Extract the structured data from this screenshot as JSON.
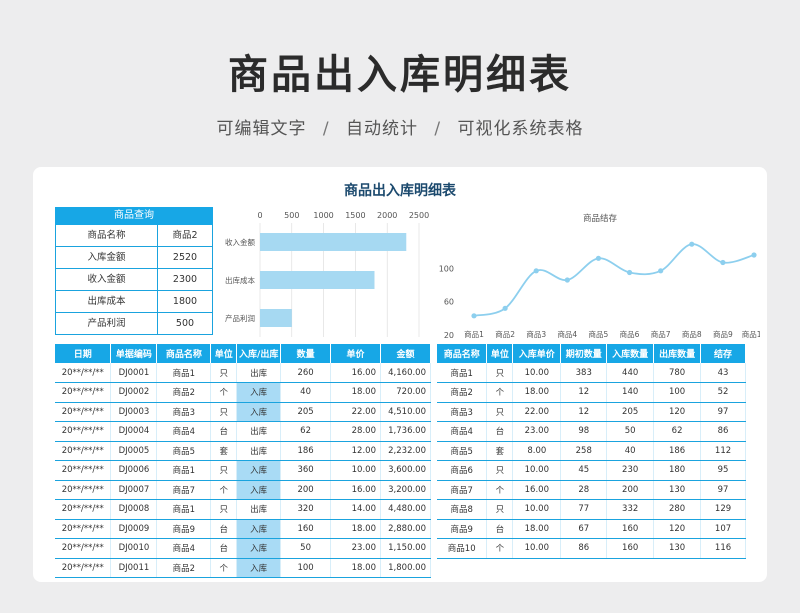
{
  "header": {
    "title": "商品出入库明细表",
    "subtitle_parts": [
      "可编辑文字",
      "自动统计",
      "可视化系统表格"
    ],
    "separator": "/"
  },
  "card": {
    "title": "商品出入库明细表"
  },
  "query": {
    "title": "商品查询",
    "rows": [
      {
        "label": "商品名称",
        "value": "商品2"
      },
      {
        "label": "入库金额",
        "value": "2520"
      },
      {
        "label": "收入金额",
        "value": "2300"
      },
      {
        "label": "出库成本",
        "value": "1800"
      },
      {
        "label": "产品利润",
        "value": "500"
      }
    ]
  },
  "chart_data": [
    {
      "type": "bar",
      "orientation": "horizontal",
      "categories": [
        "收入金额",
        "出库成本",
        "产品利润"
      ],
      "values": [
        2300,
        1800,
        500
      ],
      "x_ticks": [
        "0",
        "500",
        "1000",
        "1500",
        "2000",
        "2500"
      ],
      "xlim": [
        0,
        2500
      ],
      "grid": true,
      "color": "#a6d9f2"
    },
    {
      "type": "line",
      "title": "商品结存",
      "categories": [
        "商品1",
        "商品2",
        "商品3",
        "商品4",
        "商品5",
        "商品6",
        "商品7",
        "商品8",
        "商品9",
        "商品10"
      ],
      "values": [
        43,
        52,
        97,
        86,
        112,
        95,
        97,
        129,
        107,
        116
      ],
      "y_ticks": [
        "20",
        "60",
        "100"
      ],
      "ylim": [
        20,
        140
      ],
      "grid": false,
      "color": "#8dcfee"
    }
  ],
  "detail_table": {
    "columns": [
      "日期",
      "单据编码",
      "商品名称",
      "单位",
      "入库/出库",
      "数量",
      "单价",
      "金额"
    ],
    "rows": [
      [
        "20**/**/**",
        "DJ0001",
        "商品1",
        "只",
        "出库",
        "260",
        "16.00",
        "4,160.00"
      ],
      [
        "20**/**/**",
        "DJ0002",
        "商品2",
        "个",
        "入库",
        "40",
        "18.00",
        "720.00"
      ],
      [
        "20**/**/**",
        "DJ0003",
        "商品3",
        "只",
        "入库",
        "205",
        "22.00",
        "4,510.00"
      ],
      [
        "20**/**/**",
        "DJ0004",
        "商品4",
        "台",
        "出库",
        "62",
        "28.00",
        "1,736.00"
      ],
      [
        "20**/**/**",
        "DJ0005",
        "商品5",
        "套",
        "出库",
        "186",
        "12.00",
        "2,232.00"
      ],
      [
        "20**/**/**",
        "DJ0006",
        "商品1",
        "只",
        "入库",
        "360",
        "10.00",
        "3,600.00"
      ],
      [
        "20**/**/**",
        "DJ0007",
        "商品7",
        "个",
        "入库",
        "200",
        "16.00",
        "3,200.00"
      ],
      [
        "20**/**/**",
        "DJ0008",
        "商品1",
        "只",
        "出库",
        "320",
        "14.00",
        "4,480.00"
      ],
      [
        "20**/**/**",
        "DJ0009",
        "商品9",
        "台",
        "入库",
        "160",
        "18.00",
        "2,880.00"
      ],
      [
        "20**/**/**",
        "DJ0010",
        "商品4",
        "台",
        "入库",
        "50",
        "23.00",
        "1,150.00"
      ],
      [
        "20**/**/**",
        "DJ0011",
        "商品2",
        "个",
        "入库",
        "100",
        "18.00",
        "1,800.00"
      ]
    ]
  },
  "stock_table": {
    "columns": [
      "商品名称",
      "单位",
      "入库单价",
      "期初数量",
      "入库数量",
      "出库数量",
      "结存"
    ],
    "rows": [
      [
        "商品1",
        "只",
        "10.00",
        "383",
        "440",
        "780",
        "43"
      ],
      [
        "商品2",
        "个",
        "18.00",
        "12",
        "140",
        "100",
        "52"
      ],
      [
        "商品3",
        "只",
        "22.00",
        "12",
        "205",
        "120",
        "97"
      ],
      [
        "商品4",
        "台",
        "23.00",
        "98",
        "50",
        "62",
        "86"
      ],
      [
        "商品5",
        "套",
        "8.00",
        "258",
        "40",
        "186",
        "112"
      ],
      [
        "商品6",
        "只",
        "10.00",
        "45",
        "230",
        "180",
        "95"
      ],
      [
        "商品7",
        "个",
        "16.00",
        "28",
        "200",
        "130",
        "97"
      ],
      [
        "商品8",
        "只",
        "10.00",
        "77",
        "332",
        "280",
        "129"
      ],
      [
        "商品9",
        "台",
        "18.00",
        "67",
        "160",
        "120",
        "107"
      ],
      [
        "商品10",
        "个",
        "10.00",
        "86",
        "160",
        "130",
        "116"
      ]
    ]
  },
  "colors": {
    "accent": "#17a7e6",
    "highlight": "#a9dbf5",
    "background": "#ededee"
  }
}
